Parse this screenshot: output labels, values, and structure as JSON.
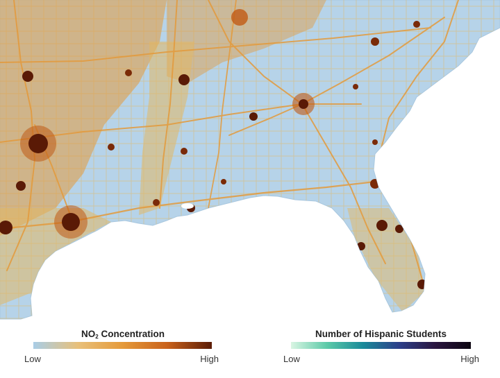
{
  "map": {
    "colors": {
      "water": "#ffffff",
      "land": "#b6d3e9",
      "road_low": "#e2b865",
      "road_mid": "#e39a3c",
      "urban": "#c05a14",
      "urban_core": "#5a1a06",
      "coast": "#a8c7df"
    }
  },
  "legend_no2": {
    "title_main": "NO",
    "title_sub": "2",
    "title_rest": " Concentration",
    "low": "Low",
    "high": "High",
    "gradient": [
      "#a9cde6",
      "#e8c07a",
      "#e59a3a",
      "#c9621c",
      "#5b1c06"
    ]
  },
  "legend_hispanic": {
    "title": "Number of Hispanic Students",
    "low": "Low",
    "high": "High",
    "gradient": [
      "#d9f5e3",
      "#5ccaa8",
      "#1a8a99",
      "#2c3f8a",
      "#2a1640",
      "#0b0410"
    ]
  }
}
